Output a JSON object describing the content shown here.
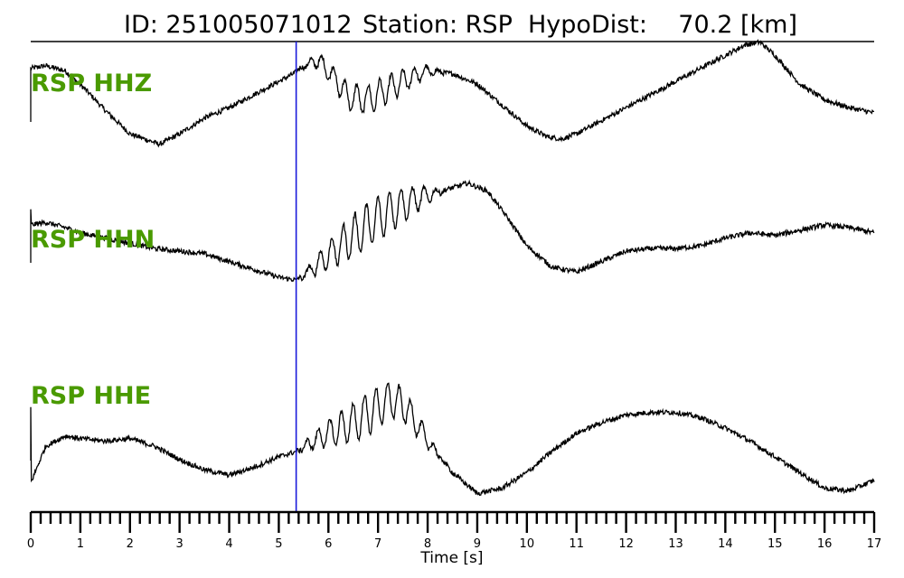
{
  "title": {
    "id": "ID: 251005071012",
    "station": "Station: RSP",
    "hypodist": "HypoDist:    70.2 [km]"
  },
  "colors": {
    "channel_label": "#4a9a00",
    "pick_line": "#1a1adb",
    "trace": "#000000"
  },
  "chart_data": {
    "type": "line",
    "xlabel": "Time [s]",
    "xlim": [
      0,
      17
    ],
    "x_tick_labels": [
      "0",
      "1",
      "2",
      "3",
      "4",
      "5",
      "6",
      "7",
      "8",
      "9",
      "10",
      "11",
      "12",
      "13",
      "14",
      "15",
      "16",
      "17"
    ],
    "minor_tick_step": 0.2,
    "pick_time": 5.35,
    "grid": false,
    "series": [
      {
        "name": "RSP HHZ",
        "time": [
          0,
          0.3,
          0.7,
          1.1,
          1.5,
          2.0,
          2.6,
          3.0,
          3.5,
          4.0,
          4.5,
          5.0,
          5.3,
          5.5,
          5.8,
          6.1,
          6.4,
          6.8,
          7.2,
          7.6,
          8.0,
          8.5,
          9.0,
          9.5,
          10.0,
          10.4,
          10.7,
          11.0,
          11.5,
          12.0,
          12.5,
          13.0,
          13.5,
          14.0,
          14.4,
          14.7,
          15.0,
          15.5,
          16.0,
          16.5,
          17.0
        ],
        "amplitude": [
          0.85,
          0.9,
          0.8,
          0.45,
          0.05,
          -0.4,
          -0.6,
          -0.4,
          -0.1,
          0.1,
          0.35,
          0.6,
          0.75,
          0.9,
          1.0,
          0.7,
          0.3,
          0.25,
          0.45,
          0.65,
          0.8,
          0.75,
          0.55,
          0.15,
          -0.25,
          -0.45,
          -0.5,
          -0.4,
          -0.15,
          0.1,
          0.35,
          0.6,
          0.85,
          1.1,
          1.3,
          1.35,
          1.1,
          0.55,
          0.25,
          0.1,
          0.0
        ],
        "noise": 0.06,
        "oscillation": 0.28
      },
      {
        "name": "RSP HHN",
        "time": [
          0,
          0.3,
          0.7,
          1.0,
          1.5,
          2.0,
          2.5,
          3.0,
          3.5,
          4.0,
          4.5,
          5.0,
          5.35,
          5.6,
          5.9,
          6.3,
          6.8,
          7.3,
          7.8,
          8.3,
          8.8,
          9.2,
          9.6,
          10.0,
          10.5,
          11.0,
          11.5,
          12.0,
          12.5,
          13.0,
          13.5,
          14.0,
          14.5,
          15.0,
          15.5,
          16.0,
          16.5,
          17.0
        ],
        "amplitude": [
          0.55,
          0.6,
          0.5,
          0.4,
          0.3,
          0.2,
          0.1,
          0.05,
          0.0,
          -0.15,
          -0.3,
          -0.45,
          -0.5,
          -0.35,
          -0.1,
          0.2,
          0.55,
          0.85,
          1.05,
          1.2,
          1.35,
          1.2,
          0.7,
          0.15,
          -0.25,
          -0.35,
          -0.15,
          0.05,
          0.1,
          0.1,
          0.15,
          0.3,
          0.4,
          0.35,
          0.45,
          0.55,
          0.5,
          0.4
        ],
        "noise": 0.06,
        "oscillation": 0.42
      },
      {
        "name": "RSP HHE",
        "time": [
          0,
          0.3,
          0.7,
          1.0,
          1.5,
          2.0,
          2.5,
          3.0,
          3.5,
          4.0,
          4.5,
          5.0,
          5.35,
          5.7,
          6.0,
          6.5,
          7.0,
          7.3,
          7.6,
          8.0,
          8.5,
          9.0,
          9.5,
          10.0,
          10.5,
          11.0,
          11.5,
          12.0,
          12.5,
          13.0,
          13.5,
          14.0,
          14.5,
          15.0,
          15.5,
          16.0,
          16.5,
          17.0
        ],
        "amplitude": [
          -0.6,
          0.1,
          0.3,
          0.25,
          0.2,
          0.25,
          0.1,
          -0.15,
          -0.35,
          -0.45,
          -0.3,
          -0.1,
          0.0,
          0.2,
          0.35,
          0.55,
          0.85,
          1.0,
          0.8,
          0.2,
          -0.4,
          -0.8,
          -0.7,
          -0.4,
          0.0,
          0.35,
          0.55,
          0.7,
          0.75,
          0.75,
          0.65,
          0.45,
          0.2,
          -0.1,
          -0.4,
          -0.7,
          -0.75,
          -0.55
        ],
        "noise": 0.06,
        "oscillation": 0.4
      }
    ]
  }
}
